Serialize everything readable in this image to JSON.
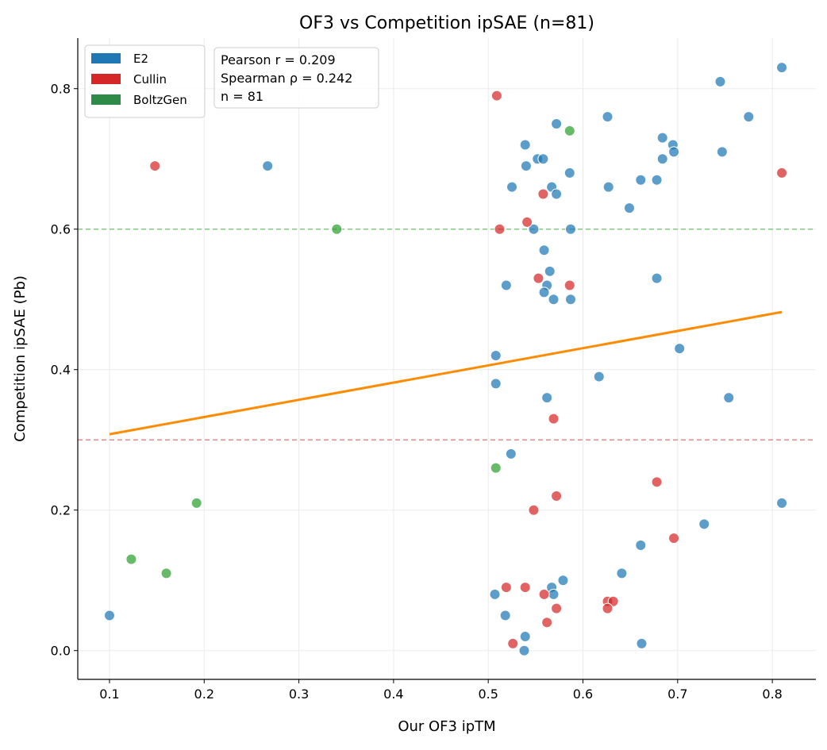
{
  "chart_data": {
    "type": "scatter",
    "title": "OF3 vs Competition ipSAE (n=81)",
    "xlabel": "Our OF3 ipTM",
    "ylabel": "Competition ipSAE (Pb)",
    "xlim": [
      0.0665,
      0.846
    ],
    "ylim": [
      -0.041,
      0.872
    ],
    "xticks": [
      "0.1",
      "0.2",
      "0.3",
      "0.4",
      "0.5",
      "0.6",
      "0.7",
      "0.8"
    ],
    "yticks": [
      "0.0",
      "0.2",
      "0.4",
      "0.6",
      "0.8"
    ],
    "grid": true,
    "legend_position": "top-left",
    "stats_text": [
      "Pearson r = 0.209",
      "Spearman ρ = 0.242",
      "n = 81"
    ],
    "series": [
      {
        "name": "E2",
        "color": "#1f77b4",
        "points": [
          [
            0.1,
            0.05
          ],
          [
            0.267,
            0.69
          ],
          [
            0.508,
            0.42
          ],
          [
            0.508,
            0.38
          ],
          [
            0.525,
            0.66
          ],
          [
            0.524,
            0.28
          ],
          [
            0.507,
            0.08
          ],
          [
            0.518,
            0.05
          ],
          [
            0.539,
            0.72
          ],
          [
            0.54,
            0.69
          ],
          [
            0.539,
            0.02
          ],
          [
            0.538,
            0.0
          ],
          [
            0.519,
            0.52
          ],
          [
            0.548,
            0.6
          ],
          [
            0.552,
            0.7
          ],
          [
            0.558,
            0.7
          ],
          [
            0.572,
            0.75
          ],
          [
            0.567,
            0.66
          ],
          [
            0.572,
            0.65
          ],
          [
            0.586,
            0.68
          ],
          [
            0.587,
            0.6
          ],
          [
            0.559,
            0.57
          ],
          [
            0.565,
            0.54
          ],
          [
            0.562,
            0.52
          ],
          [
            0.559,
            0.51
          ],
          [
            0.569,
            0.5
          ],
          [
            0.587,
            0.5
          ],
          [
            0.562,
            0.36
          ],
          [
            0.567,
            0.09
          ],
          [
            0.569,
            0.08
          ],
          [
            0.579,
            0.1
          ],
          [
            0.626,
            0.76
          ],
          [
            0.627,
            0.66
          ],
          [
            0.649,
            0.63
          ],
          [
            0.661,
            0.67
          ],
          [
            0.678,
            0.67
          ],
          [
            0.684,
            0.73
          ],
          [
            0.695,
            0.72
          ],
          [
            0.696,
            0.71
          ],
          [
            0.684,
            0.7
          ],
          [
            0.678,
            0.53
          ],
          [
            0.702,
            0.43
          ],
          [
            0.617,
            0.39
          ],
          [
            0.641,
            0.11
          ],
          [
            0.661,
            0.15
          ],
          [
            0.662,
            0.01
          ],
          [
            0.728,
            0.18
          ],
          [
            0.745,
            0.81
          ],
          [
            0.747,
            0.71
          ],
          [
            0.775,
            0.76
          ],
          [
            0.754,
            0.36
          ],
          [
            0.81,
            0.83
          ],
          [
            0.81,
            0.21
          ]
        ]
      },
      {
        "name": "Cullin",
        "color": "#d62728",
        "points": [
          [
            0.148,
            0.69
          ],
          [
            0.509,
            0.79
          ],
          [
            0.512,
            0.6
          ],
          [
            0.541,
            0.61
          ],
          [
            0.558,
            0.65
          ],
          [
            0.553,
            0.53
          ],
          [
            0.586,
            0.52
          ],
          [
            0.569,
            0.33
          ],
          [
            0.548,
            0.2
          ],
          [
            0.572,
            0.22
          ],
          [
            0.519,
            0.09
          ],
          [
            0.539,
            0.09
          ],
          [
            0.559,
            0.08
          ],
          [
            0.572,
            0.06
          ],
          [
            0.562,
            0.04
          ],
          [
            0.526,
            0.01
          ],
          [
            0.626,
            0.07
          ],
          [
            0.632,
            0.07
          ],
          [
            0.626,
            0.06
          ],
          [
            0.678,
            0.24
          ],
          [
            0.696,
            0.16
          ],
          [
            0.81,
            0.68
          ]
        ]
      },
      {
        "name": "BoltzGen",
        "color": "#2ca02c",
        "points": [
          [
            0.123,
            0.13
          ],
          [
            0.16,
            0.11
          ],
          [
            0.192,
            0.21
          ],
          [
            0.34,
            0.6
          ],
          [
            0.508,
            0.26
          ],
          [
            0.586,
            0.74
          ]
        ]
      }
    ],
    "legend_colors": [
      "#1f77b4",
      "#d62728",
      "#2e8b47"
    ],
    "fit_line": {
      "color": "#ff8c00",
      "x": [
        0.1,
        0.81
      ],
      "y": [
        0.308,
        0.482
      ]
    },
    "hlines": [
      {
        "y": 0.6,
        "color": "#2ca02c",
        "style": "dashed"
      },
      {
        "y": 0.3,
        "color": "#d62728",
        "style": "dashed"
      }
    ]
  }
}
